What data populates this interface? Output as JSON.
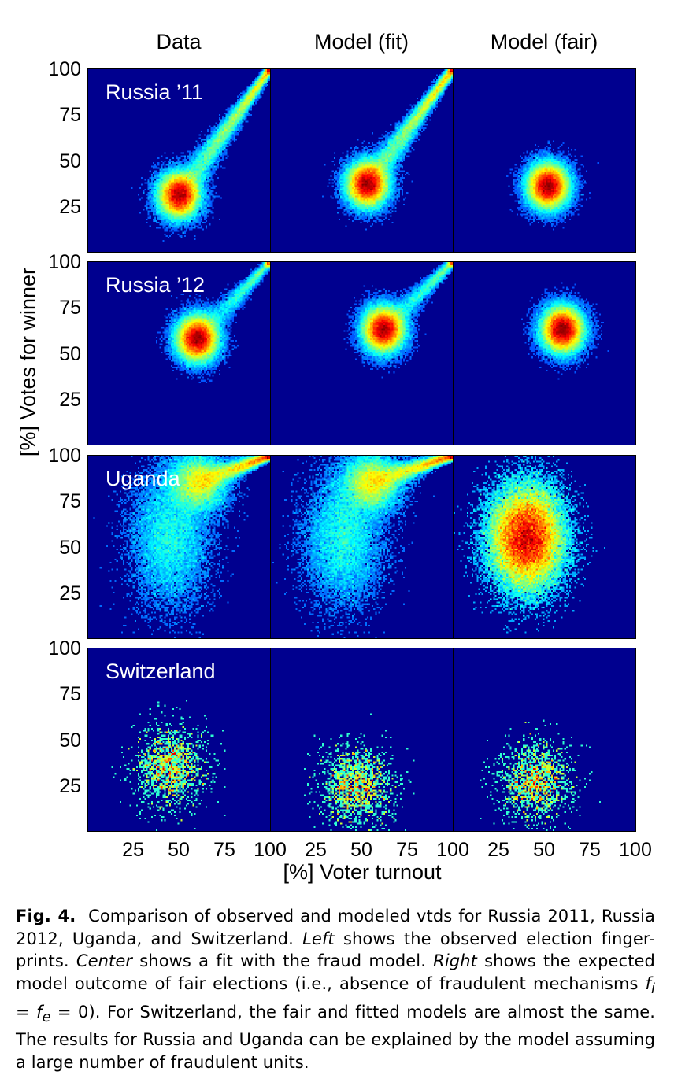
{
  "chart_data": {
    "type": "heatmap",
    "title": "",
    "column_titles": [
      "Data",
      "Model (fit)",
      "Model (fair)"
    ],
    "xlabel": "[%] Voter turnout",
    "ylabel": "[%] Votes for winner",
    "xlim": [
      0,
      100
    ],
    "ylim": [
      0,
      100
    ],
    "xticks": [
      "25",
      "50",
      "75",
      "100"
    ],
    "yticks": [
      "100",
      "75",
      "50",
      "25"
    ],
    "colormap": "jet",
    "rows": [
      {
        "country": "Russia ’11",
        "panels": [
          {
            "column": "Data",
            "center_turnout": 50,
            "center_votes": 31,
            "density": "high",
            "fraud_tail": "strong",
            "upper_corner_peak": true
          },
          {
            "column": "Model (fit)",
            "center_turnout": 53,
            "center_votes": 37,
            "density": "high",
            "fraud_tail": "strong",
            "upper_corner_peak": true
          },
          {
            "column": "Model (fair)",
            "center_turnout": 52,
            "center_votes": 36,
            "density": "high",
            "fraud_tail": "none",
            "upper_corner_peak": false
          }
        ]
      },
      {
        "country": "Russia ’12",
        "panels": [
          {
            "column": "Data",
            "center_turnout": 60,
            "center_votes": 58,
            "density": "high",
            "fraud_tail": "moderate",
            "upper_corner_peak": true
          },
          {
            "column": "Model (fit)",
            "center_turnout": 62,
            "center_votes": 63,
            "density": "high",
            "fraud_tail": "moderate",
            "upper_corner_peak": true
          },
          {
            "column": "Model (fair)",
            "center_turnout": 60,
            "center_votes": 63,
            "density": "high",
            "fraud_tail": "none",
            "upper_corner_peak": false
          }
        ]
      },
      {
        "country": "Uganda",
        "panels": [
          {
            "column": "Data",
            "center_turnout": 60,
            "center_votes": 85,
            "density": "medium",
            "fraud_tail": "strong",
            "upper_corner_peak": true
          },
          {
            "column": "Model (fit)",
            "center_turnout": 55,
            "center_votes": 85,
            "density": "medium",
            "fraud_tail": "strong",
            "upper_corner_peak": true
          },
          {
            "column": "Model (fair)",
            "center_turnout": 40,
            "center_votes": 55,
            "density": "medium",
            "fraud_tail": "none",
            "upper_corner_peak": false
          }
        ]
      },
      {
        "country": "Switzerland",
        "panels": [
          {
            "column": "Data",
            "center_turnout": 45,
            "center_votes": 35,
            "density": "sparse",
            "fraud_tail": "none",
            "upper_corner_peak": false
          },
          {
            "column": "Model (fit)",
            "center_turnout": 47,
            "center_votes": 25,
            "density": "sparse",
            "fraud_tail": "none",
            "upper_corner_peak": false
          },
          {
            "column": "Model (fair)",
            "center_turnout": 45,
            "center_votes": 27,
            "density": "sparse",
            "fraud_tail": "none",
            "upper_corner_peak": false
          }
        ]
      }
    ]
  },
  "caption": {
    "label": "Fig. 4.",
    "t1": "Comparison of observed and modeled vtds for Russia 2011, Russia 2012, Uganda, and Switzerland. ",
    "left": "Left",
    "t2": " shows the observed election finger-prints. ",
    "center": "Center",
    "t3": " shows a fit with the fraud model. ",
    "right": "Right",
    "t4": " shows the expected model outcome of fair elections (i.e., absence of fraudulent mechanisms ",
    "fi": "f",
    "fi_sub": "i",
    "eq1": " = ",
    "fe": "f",
    "fe_sub": "e",
    "t5": " = 0). For Switzerland, the fair and fitted models are almost the same. The results for Russia and Uganda can be explained by the model assuming a large number of fraudulent units."
  }
}
